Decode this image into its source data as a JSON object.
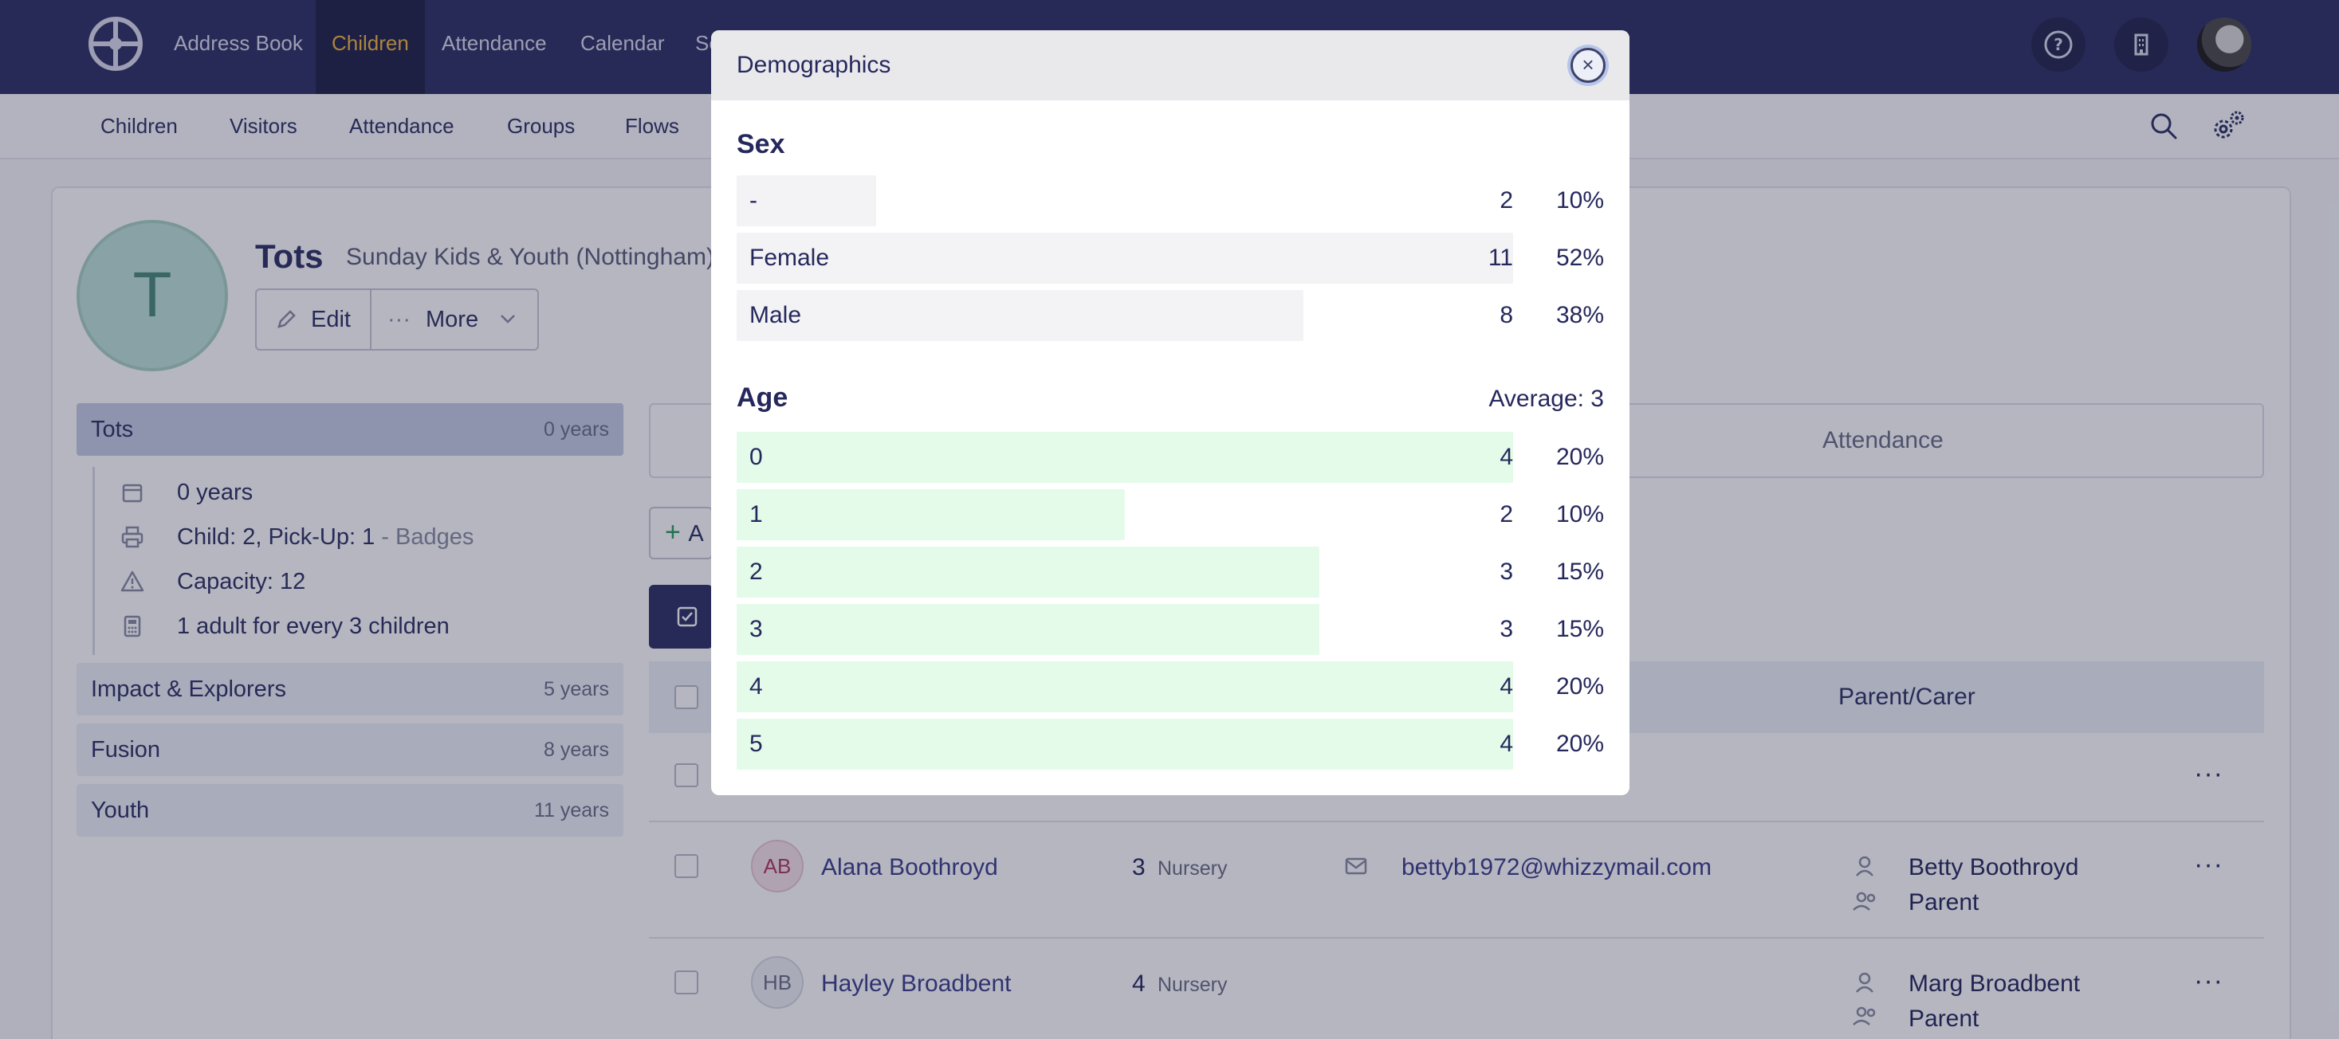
{
  "topnav": {
    "items": [
      "Address Book",
      "Children",
      "Attendance",
      "Calendar",
      "Se"
    ],
    "active": "Children",
    "colors": {
      "bg": "#2e3163",
      "active_text": "#f0b544"
    }
  },
  "subnav": {
    "items": [
      "Children",
      "Visitors",
      "Attendance",
      "Groups",
      "Flows"
    ]
  },
  "group": {
    "initial": "T",
    "title": "Tots",
    "subtitle": "Sunday Kids & Youth (Nottingham)",
    "edit_label": "Edit",
    "more_label": "More"
  },
  "sidebar": {
    "groups": [
      {
        "name": "Tots",
        "years": "0 years"
      },
      {
        "name": "Impact & Explorers",
        "years": "5 years"
      },
      {
        "name": "Fusion",
        "years": "8 years"
      },
      {
        "name": "Youth",
        "years": "11 years"
      }
    ],
    "details": {
      "age": "0 years",
      "labels_text": "Child: 2, Pick-Up: 1",
      "labels_link": " - Badges",
      "capacity": "Capacity: 12",
      "ratio": "1 adult for every 3 children"
    }
  },
  "main": {
    "tab_attendance": "Attendance",
    "add_partial": "A",
    "table_header_parent": "Parent/Carer",
    "rows": [
      {
        "initials": "AB",
        "name": "Alana Boothroyd",
        "age": "3",
        "group": "Nursery",
        "email": "bettyb1972@whizzymail.com",
        "parent": "Betty Boothroyd",
        "relation": "Parent"
      },
      {
        "initials": "HB",
        "name": "Hayley Broadbent",
        "age": "4",
        "group": "Nursery",
        "email": "",
        "parent": "Marg Broadbent",
        "relation": "Parent"
      }
    ]
  },
  "modal": {
    "title": "Demographics",
    "close_label": "×",
    "sex": {
      "heading": "Sex",
      "rows": [
        {
          "label": "-",
          "count": "2",
          "pct": "10%",
          "fraction": 0.18
        },
        {
          "label": "Female",
          "count": "11",
          "pct": "52%",
          "fraction": 1.0
        },
        {
          "label": "Male",
          "count": "8",
          "pct": "38%",
          "fraction": 0.73
        }
      ]
    },
    "age": {
      "heading": "Age",
      "average": "Average: 3",
      "rows": [
        {
          "label": "0",
          "count": "4",
          "pct": "20%",
          "fraction": 1.0
        },
        {
          "label": "1",
          "count": "2",
          "pct": "10%",
          "fraction": 0.5
        },
        {
          "label": "2",
          "count": "3",
          "pct": "15%",
          "fraction": 0.75
        },
        {
          "label": "3",
          "count": "3",
          "pct": "15%",
          "fraction": 0.75
        },
        {
          "label": "4",
          "count": "4",
          "pct": "20%",
          "fraction": 1.0
        },
        {
          "label": "5",
          "count": "4",
          "pct": "20%",
          "fraction": 1.0
        }
      ]
    },
    "colors": {
      "sex_bar": "#f3f3f5",
      "age_bar": "#e4fbe9"
    }
  }
}
